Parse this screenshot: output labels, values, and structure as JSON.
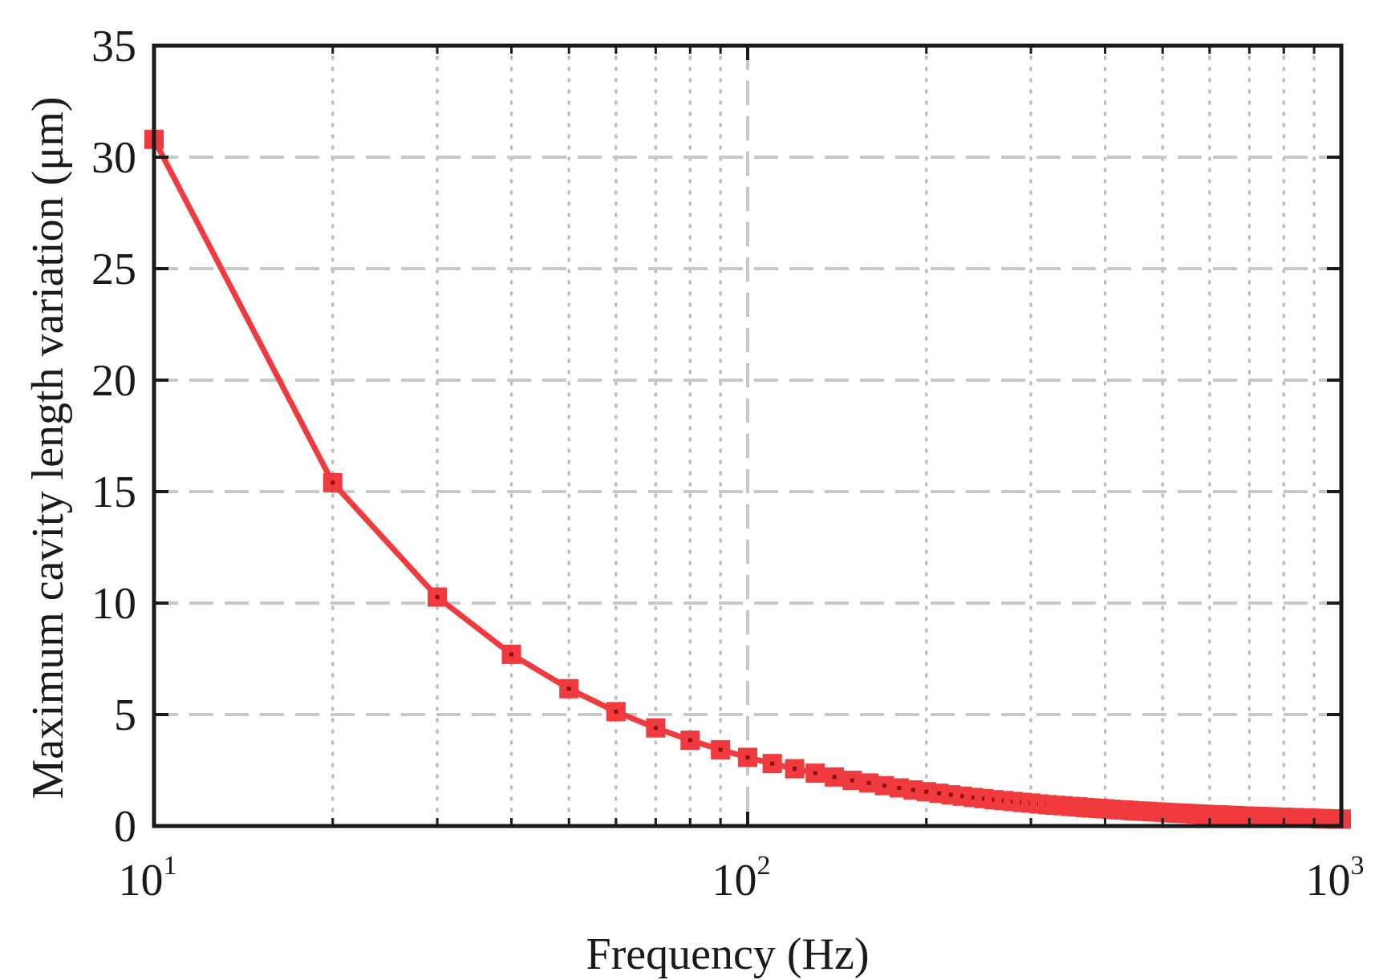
{
  "chart_data": {
    "type": "line",
    "xlabel": "Frequency (Hz)",
    "ylabel": "Maximum cavity length variation (μm)",
    "x_scale": "log",
    "xlim": [
      10,
      1000
    ],
    "ylim": [
      0,
      35
    ],
    "x_ticks": [
      {
        "value": 10,
        "base": "10",
        "exp": "1"
      },
      {
        "value": 100,
        "base": "10",
        "exp": "2"
      },
      {
        "value": 1000,
        "base": "10",
        "exp": "3"
      }
    ],
    "y_ticks": [
      "0",
      "5",
      "10",
      "15",
      "20",
      "25",
      "30",
      "35"
    ],
    "grid": true,
    "series": [
      {
        "color": "#f03a3e",
        "marker": "square",
        "x": [
          10,
          20,
          30,
          40,
          50,
          60,
          70,
          80,
          90,
          100,
          110,
          120,
          130,
          140,
          150,
          160,
          170,
          180,
          190,
          200,
          210,
          220,
          230,
          240,
          250,
          260,
          270,
          280,
          290,
          300,
          310,
          320,
          330,
          340,
          350,
          360,
          370,
          380,
          390,
          400,
          410,
          420,
          430,
          440,
          450,
          460,
          470,
          480,
          490,
          500,
          510,
          520,
          530,
          540,
          550,
          560,
          570,
          580,
          590,
          600,
          610,
          620,
          630,
          640,
          650,
          660,
          670,
          680,
          690,
          700,
          710,
          720,
          730,
          740,
          750,
          760,
          770,
          780,
          790,
          800,
          810,
          820,
          830,
          840,
          850,
          860,
          870,
          880,
          890,
          900,
          910,
          920,
          930,
          940,
          950,
          960,
          970,
          980,
          990,
          1000
        ],
        "values": [
          30.8,
          15.4,
          10.27,
          7.7,
          6.16,
          5.13,
          4.4,
          3.85,
          3.42,
          3.08,
          2.8,
          2.57,
          2.37,
          2.2,
          2.05,
          1.93,
          1.81,
          1.71,
          1.62,
          1.54,
          1.47,
          1.4,
          1.34,
          1.28,
          1.23,
          1.18,
          1.14,
          1.1,
          1.06,
          1.03,
          0.99,
          0.96,
          0.93,
          0.91,
          0.88,
          0.86,
          0.83,
          0.81,
          0.79,
          0.77,
          0.75,
          0.73,
          0.72,
          0.7,
          0.68,
          0.67,
          0.66,
          0.64,
          0.63,
          0.62,
          0.6,
          0.59,
          0.58,
          0.57,
          0.56,
          0.55,
          0.54,
          0.53,
          0.52,
          0.51,
          0.5,
          0.5,
          0.49,
          0.48,
          0.47,
          0.47,
          0.46,
          0.45,
          0.45,
          0.44,
          0.43,
          0.43,
          0.42,
          0.42,
          0.41,
          0.41,
          0.4,
          0.39,
          0.39,
          0.39,
          0.38,
          0.38,
          0.37,
          0.37,
          0.36,
          0.36,
          0.35,
          0.35,
          0.35,
          0.34,
          0.34,
          0.33,
          0.33,
          0.33,
          0.32,
          0.32,
          0.32,
          0.31,
          0.31,
          0.31
        ]
      }
    ]
  }
}
